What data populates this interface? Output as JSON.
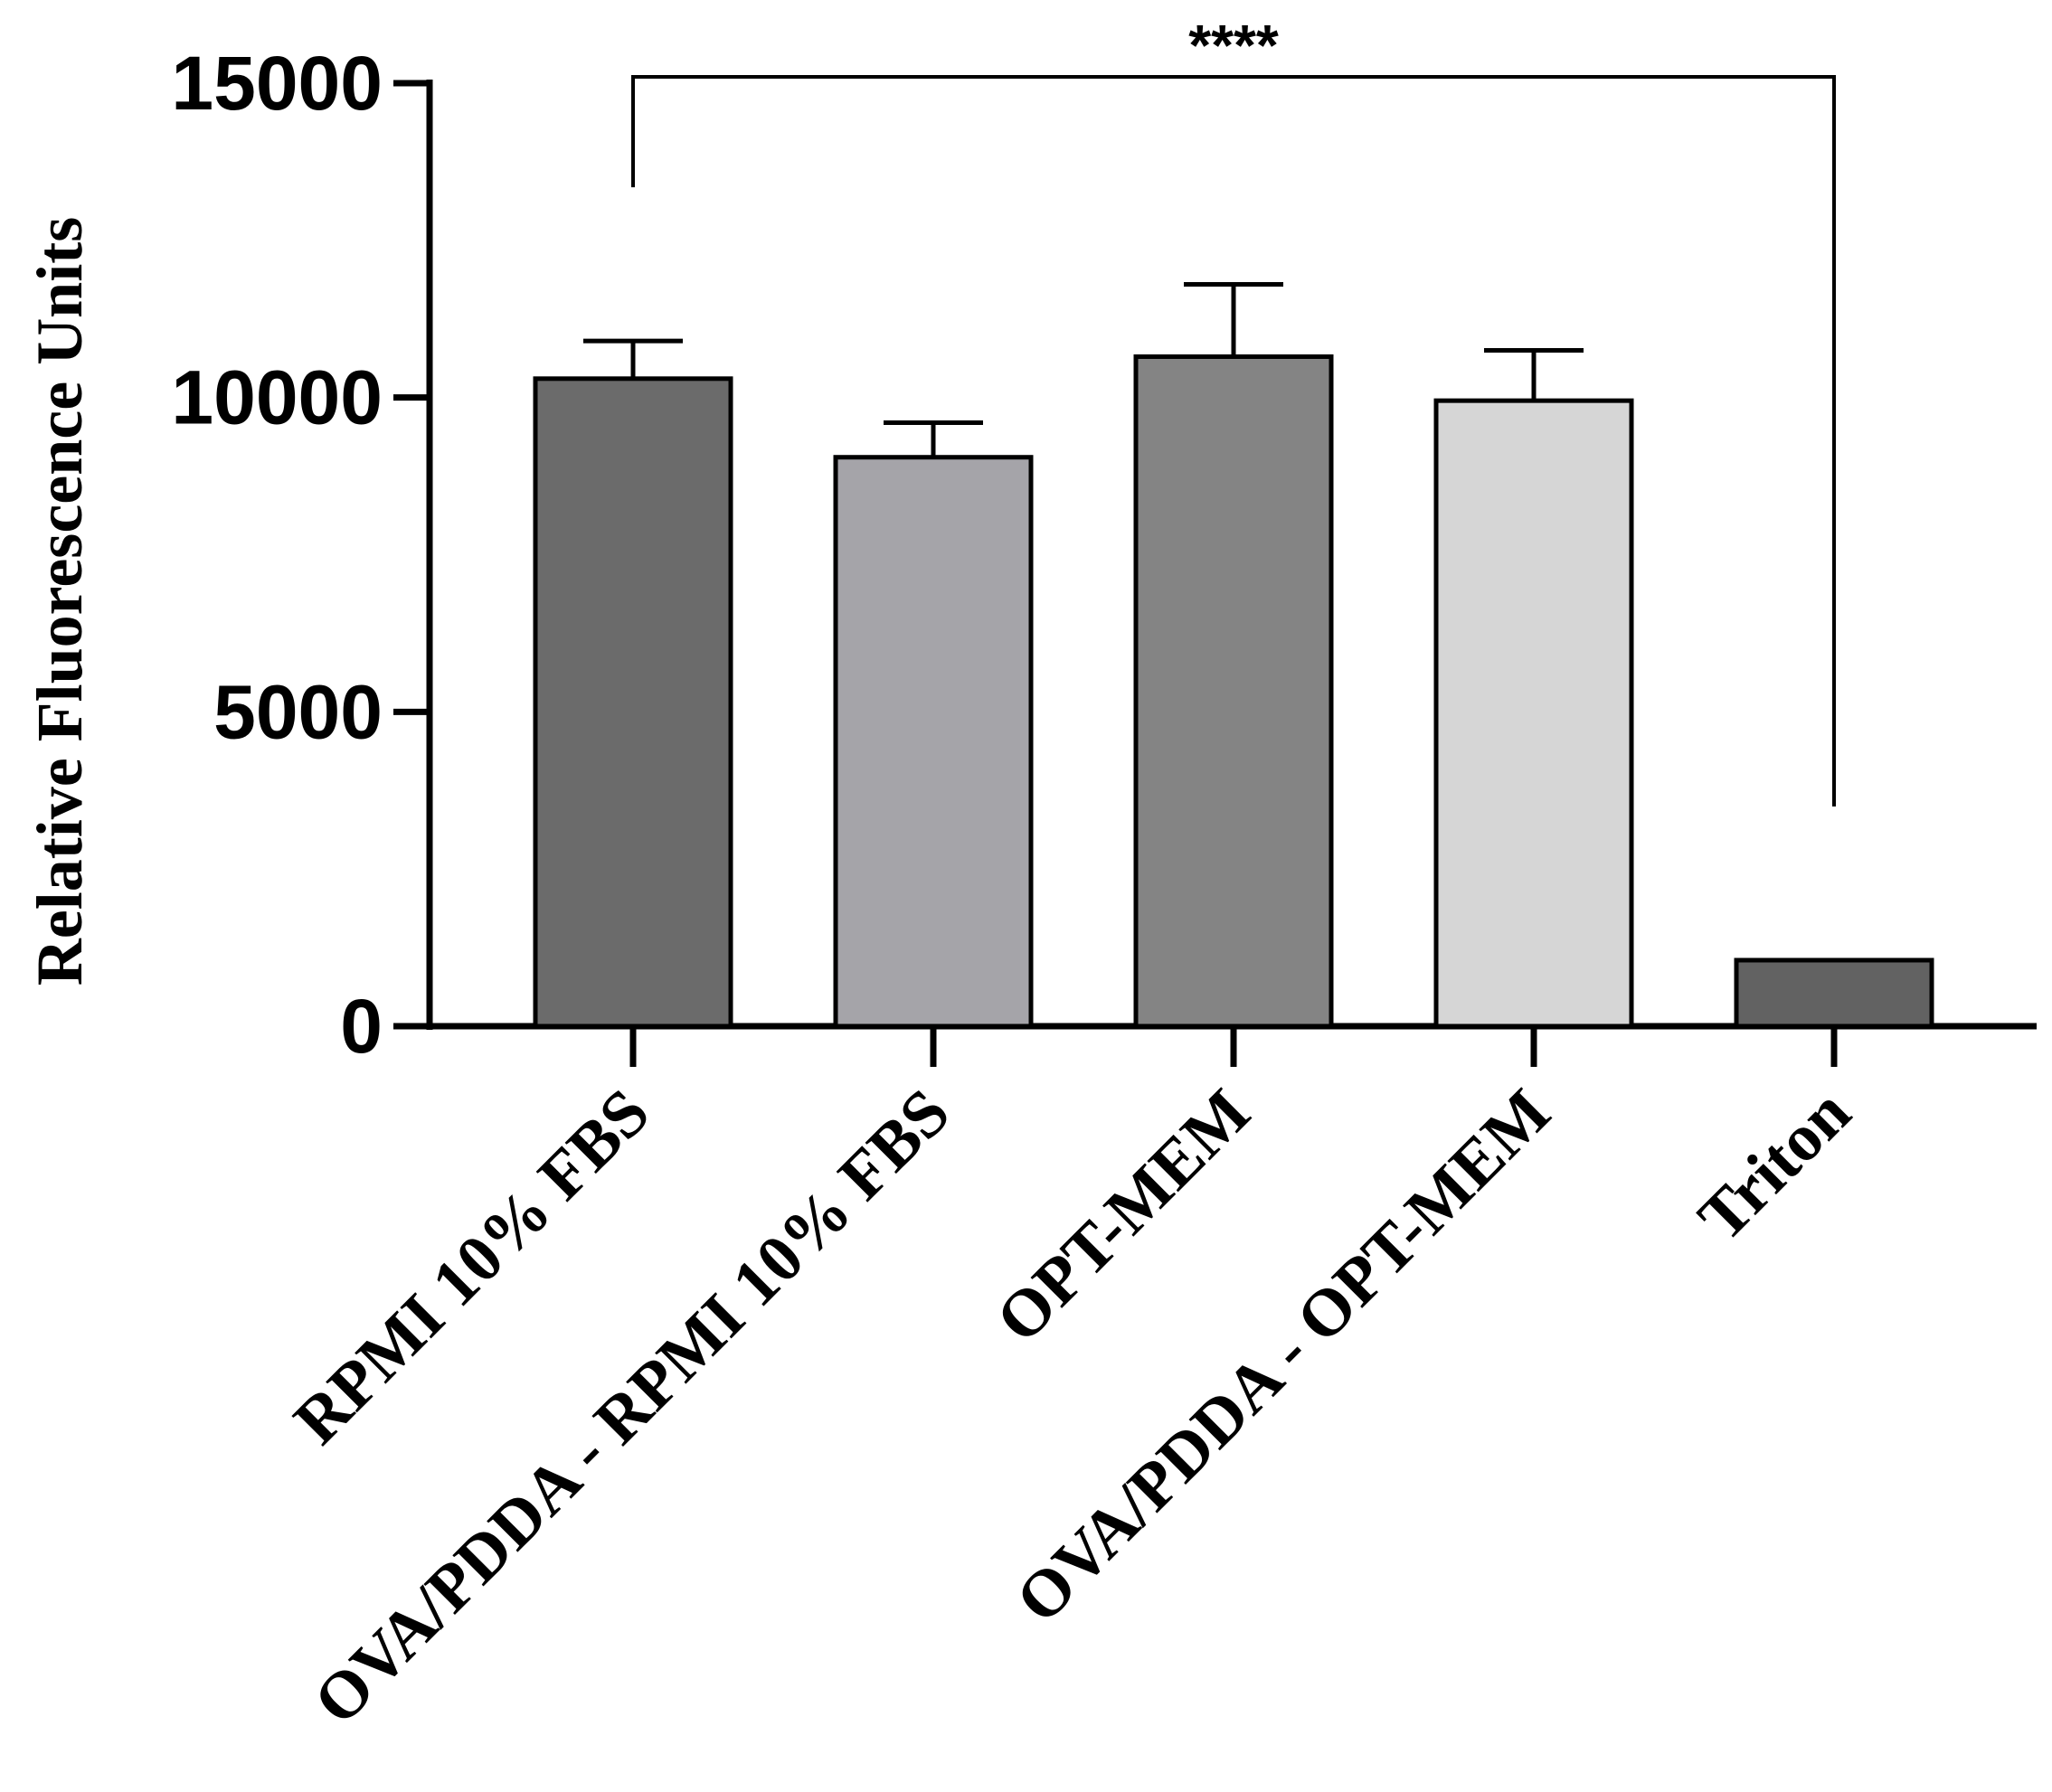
{
  "chart_data": {
    "type": "bar",
    "title": "",
    "xlabel": "",
    "ylabel": "Relative Fluorescence Units",
    "ylim": [
      0,
      15000
    ],
    "yticks": [
      0,
      5000,
      10000,
      15000
    ],
    "ytick_labels": [
      "0",
      "5000",
      "10000",
      "15000"
    ],
    "grid": false,
    "legend": "none",
    "categories": [
      "RPMI 10% FBS",
      "OVA/PDDA - RPMI 10% FBS",
      "OPT-MEM",
      "OVA/PDDA - OPT-MEM",
      "Triton"
    ],
    "values": [
      10300,
      9050,
      10650,
      9950,
      1050
    ],
    "error_upper": [
      600,
      550,
      1150,
      800,
      0
    ],
    "bar_colors": [
      "#6b6b6b",
      "#a5a4a9",
      "#848484",
      "#d6d6d6",
      "#626262"
    ],
    "significance": {
      "from": "RPMI 10% FBS",
      "to": "Triton",
      "label": "****"
    }
  }
}
